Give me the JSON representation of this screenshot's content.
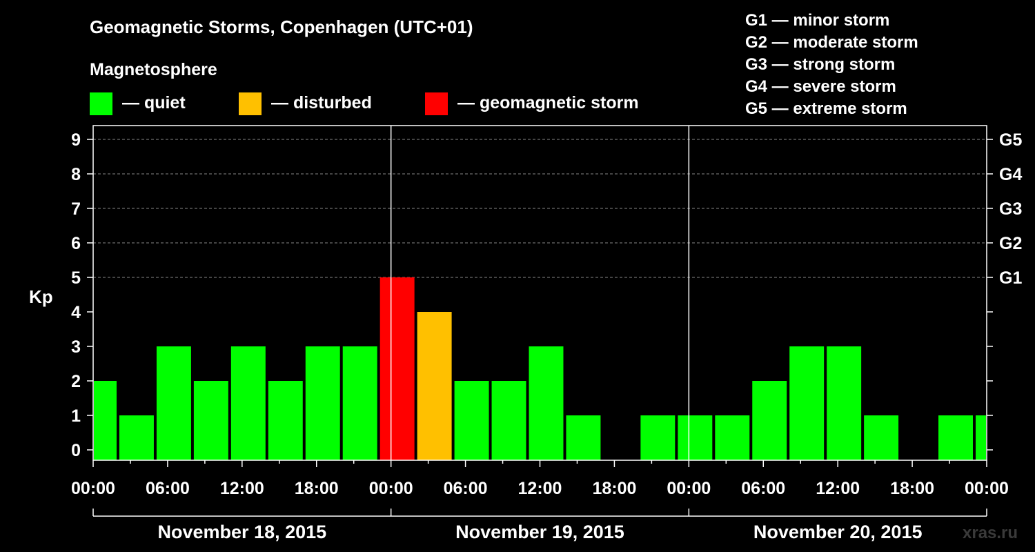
{
  "header": {
    "title": "Geomagnetic Storms, Copenhagen (UTC+01)",
    "legend_heading": "Magnetosphere",
    "legend": [
      {
        "label": "— quiet",
        "color": "#00ff00"
      },
      {
        "label": "— disturbed",
        "color": "#ffc000"
      },
      {
        "label": "— geomagnetic storm",
        "color": "#ff0000"
      }
    ],
    "storm_scale": [
      "G1 — minor storm",
      "G2 — moderate storm",
      "G3 — strong storm",
      "G4 — severe storm",
      "G5 — extreme storm"
    ]
  },
  "watermark": "xras.ru",
  "chart_data": {
    "type": "bar",
    "ylabel": "Kp",
    "ylim": [
      0,
      9
    ],
    "y_ticks": [
      "0",
      "1",
      "2",
      "3",
      "4",
      "5",
      "6",
      "7",
      "8",
      "9"
    ],
    "right_ticks": [
      {
        "kp": 5,
        "label": "G1"
      },
      {
        "kp": 6,
        "label": "G2"
      },
      {
        "kp": 7,
        "label": "G3"
      },
      {
        "kp": 8,
        "label": "G4"
      },
      {
        "kp": 9,
        "label": "G5"
      }
    ],
    "x_tick_labels": [
      "00:00",
      "06:00",
      "12:00",
      "18:00",
      "00:00",
      "06:00",
      "12:00",
      "18:00",
      "00:00",
      "06:00",
      "12:00",
      "18:00",
      "00:00"
    ],
    "days": [
      "November 18, 2015",
      "November 19, 2015",
      "November 20, 2015"
    ],
    "interval_hours": 3,
    "first_interval_start_hour": -1,
    "values": [
      2,
      1,
      3,
      2,
      3,
      2,
      3,
      3,
      5,
      4,
      2,
      2,
      3,
      1,
      0,
      1,
      1,
      1,
      2,
      3,
      3,
      1,
      0,
      1,
      1
    ],
    "colors": {
      "quiet": "#00ff00",
      "disturbed": "#ffc000",
      "storm": "#ff0000"
    },
    "grid": "dashed horizontal at Kp 5-9"
  }
}
